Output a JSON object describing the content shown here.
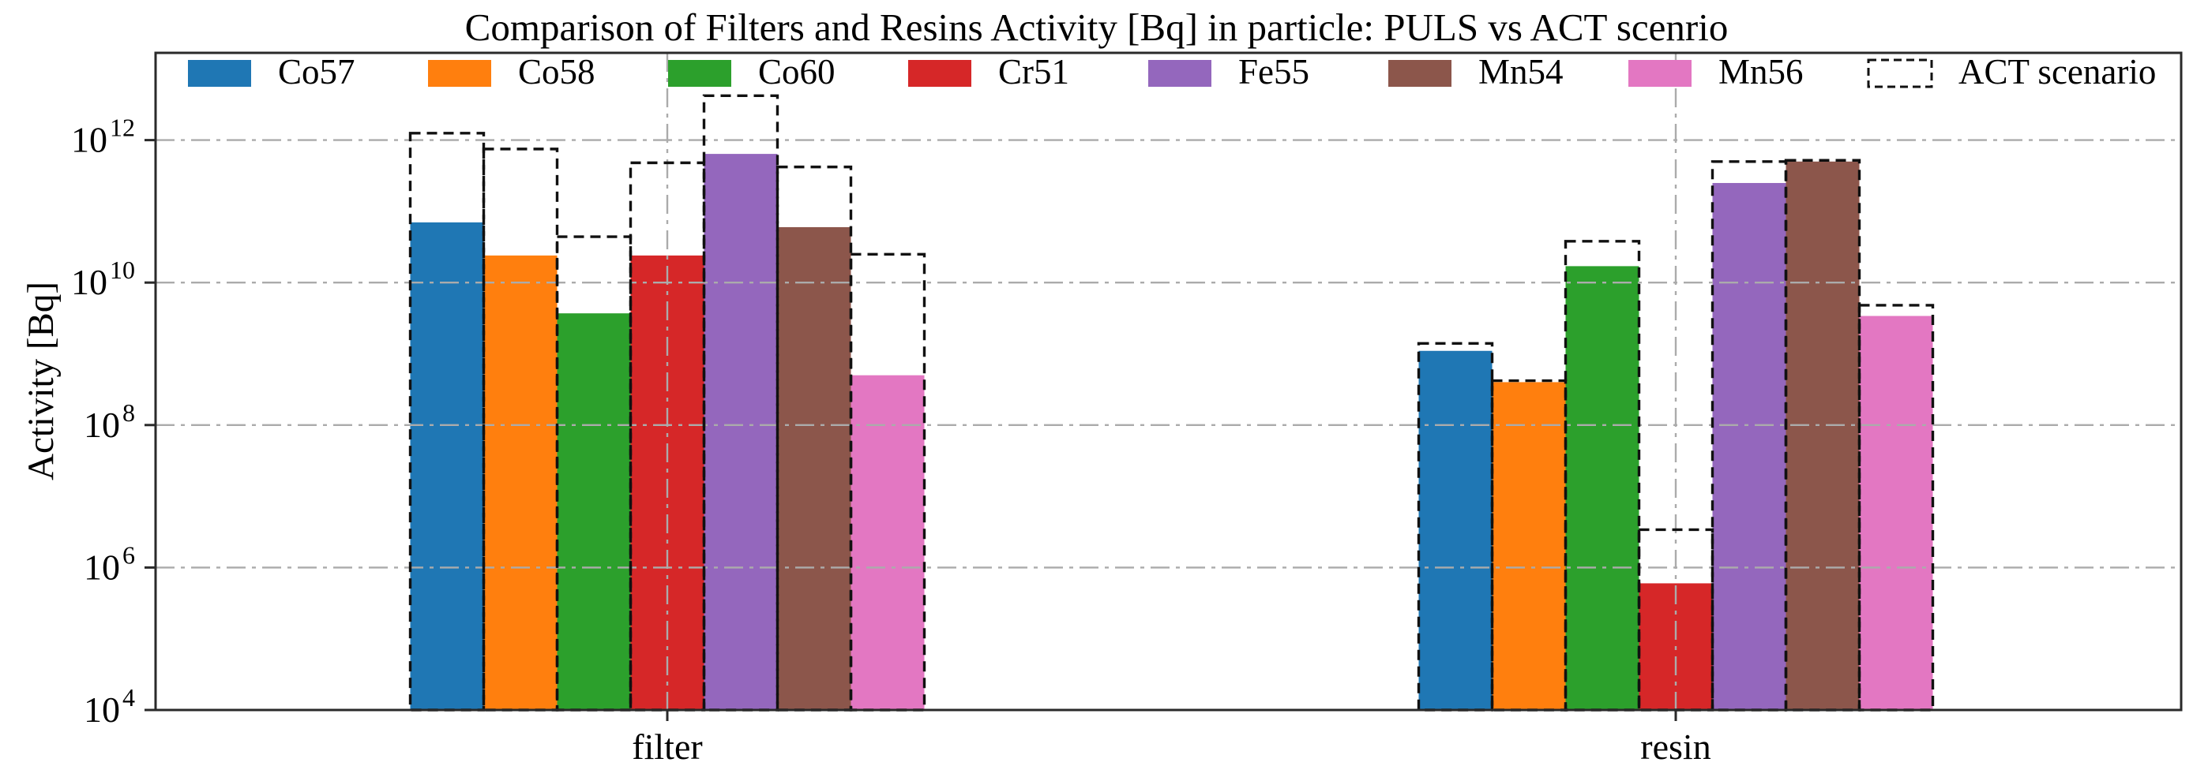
{
  "chart_data": {
    "type": "bar",
    "title": "Comparison of Filters and Resins Activity [Bq] in particle: PULS vs ACT scenrio",
    "ylabel": "Activity [Bq]",
    "xlabel": "",
    "categories": [
      "filter",
      "resin"
    ],
    "y_tick_labels": [
      "10^4",
      "10^6",
      "10^8",
      "10^10",
      "10^12"
    ],
    "y_tick_values": [
      10000.0,
      1000000.0,
      100000000.0,
      10000000000.0,
      1000000000000.0
    ],
    "ylim": [
      10000.0,
      17000000000000.0
    ],
    "yscale": "log",
    "grid": true,
    "grid_style": "dash-dot",
    "legend_position": "top-row-inside-plot",
    "act_legend_label": "ACT scenario",
    "filled_series_scenario": "PULS",
    "outlined_series_scenario": "ACT",
    "series": [
      {
        "name": "Co57",
        "color": "#1f77b4",
        "puls": [
          70000000000.0,
          1100000000.0
        ],
        "act": [
          1250000000000.0,
          1400000000.0
        ]
      },
      {
        "name": "Co58",
        "color": "#ff7f0e",
        "puls": [
          24000000000.0,
          400000000.0
        ],
        "act": [
          750000000000.0,
          420000000.0
        ]
      },
      {
        "name": "Co60",
        "color": "#2ca02c",
        "puls": [
          3700000000.0,
          17000000000.0
        ],
        "act": [
          44000000000.0,
          38000000000.0
        ]
      },
      {
        "name": "Cr51",
        "color": "#d62728",
        "puls": [
          24000000000.0,
          600000.0
        ],
        "act": [
          480000000000.0,
          3400000.0
        ]
      },
      {
        "name": "Fe55",
        "color": "#9467bd",
        "puls": [
          640000000000.0,
          250000000000.0
        ],
        "act": [
          4200000000000.0,
          500000000000.0
        ]
      },
      {
        "name": "Mn54",
        "color": "#8c564b",
        "puls": [
          60000000000.0,
          500000000000.0
        ],
        "act": [
          420000000000.0,
          520000000000.0
        ]
      },
      {
        "name": "Mn56",
        "color": "#e377c2",
        "puls": [
          500000000.0,
          3400000000.0
        ],
        "act": [
          25000000000.0,
          4800000000.0
        ]
      }
    ],
    "colors": {
      "background": "#ffffff",
      "grid": "#ababab",
      "axis": "#2a2a2a",
      "act_outline": "#111111",
      "text": "#000000"
    }
  }
}
